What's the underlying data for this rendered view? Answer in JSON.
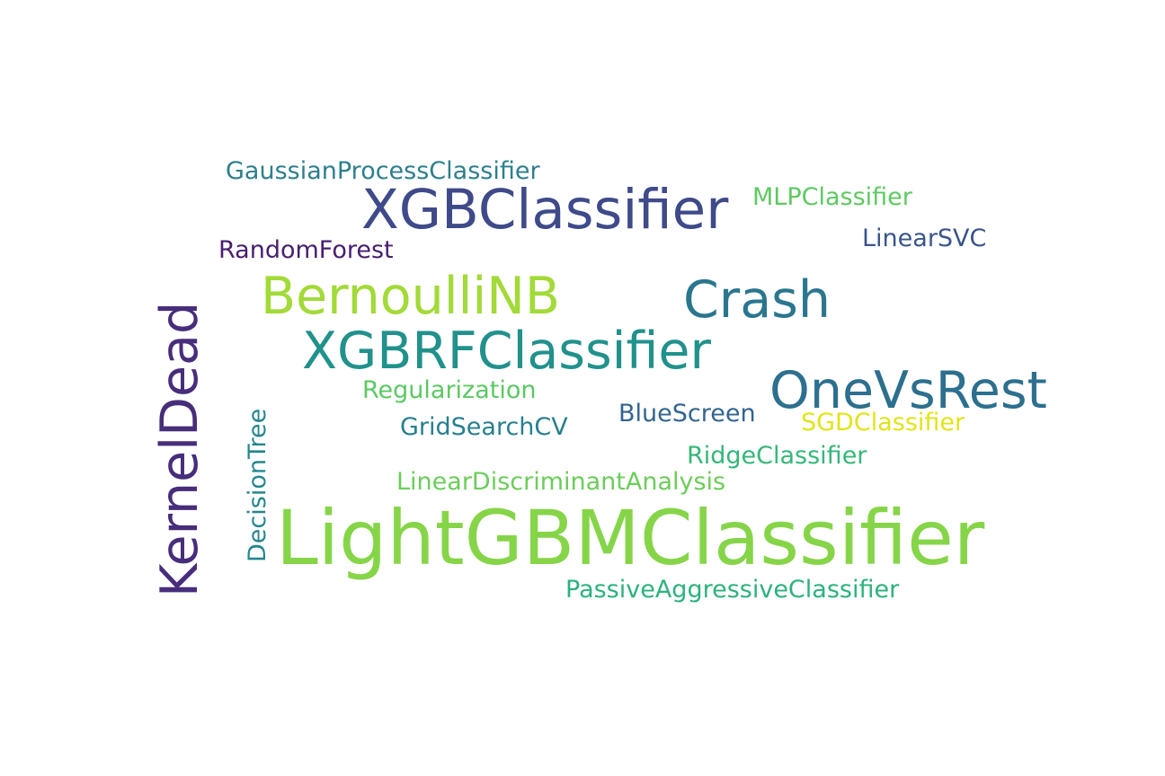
{
  "words": [
    {
      "key": "gaussian",
      "text": "GaussianProcessClassifier",
      "color": "#2e7f8e"
    },
    {
      "key": "xgb",
      "text": "XGBClassifier",
      "color": "#3e4a89"
    },
    {
      "key": "mlp",
      "text": "MLPClassifier",
      "color": "#5ec962"
    },
    {
      "key": "random",
      "text": "RandomForest",
      "color": "#481d6f"
    },
    {
      "key": "linearsvc",
      "text": "LinearSVC",
      "color": "#3a548c"
    },
    {
      "key": "bernoulli",
      "text": "BernoulliNB",
      "color": "#a2da37"
    },
    {
      "key": "crash",
      "text": "Crash",
      "color": "#2a768e"
    },
    {
      "key": "kernel",
      "text": "KernelDead",
      "color": "#472d7b"
    },
    {
      "key": "xgbrf",
      "text": "XGBRFClassifier",
      "color": "#21918c"
    },
    {
      "key": "onevsrest",
      "text": "OneVsRest",
      "color": "#2c6f8e"
    },
    {
      "key": "regular",
      "text": "Regularization",
      "color": "#5cc863"
    },
    {
      "key": "decision",
      "text": "DecisionTree",
      "color": "#24868e"
    },
    {
      "key": "bluescreen",
      "text": "BlueScreen",
      "color": "#32658e"
    },
    {
      "key": "sgd",
      "text": "SGDClassifier",
      "color": "#e2e418"
    },
    {
      "key": "grid",
      "text": "GridSearchCV",
      "color": "#277f8e"
    },
    {
      "key": "ridge",
      "text": "RidgeClassifier",
      "color": "#35b779"
    },
    {
      "key": "lda",
      "text": "LinearDiscriminantAnalysis",
      "color": "#6ccd5a"
    },
    {
      "key": "lightgbm",
      "text": "LightGBMClassifier",
      "color": "#86d549"
    },
    {
      "key": "passive",
      "text": "PassiveAggressiveClassifier",
      "color": "#2db27d"
    }
  ]
}
